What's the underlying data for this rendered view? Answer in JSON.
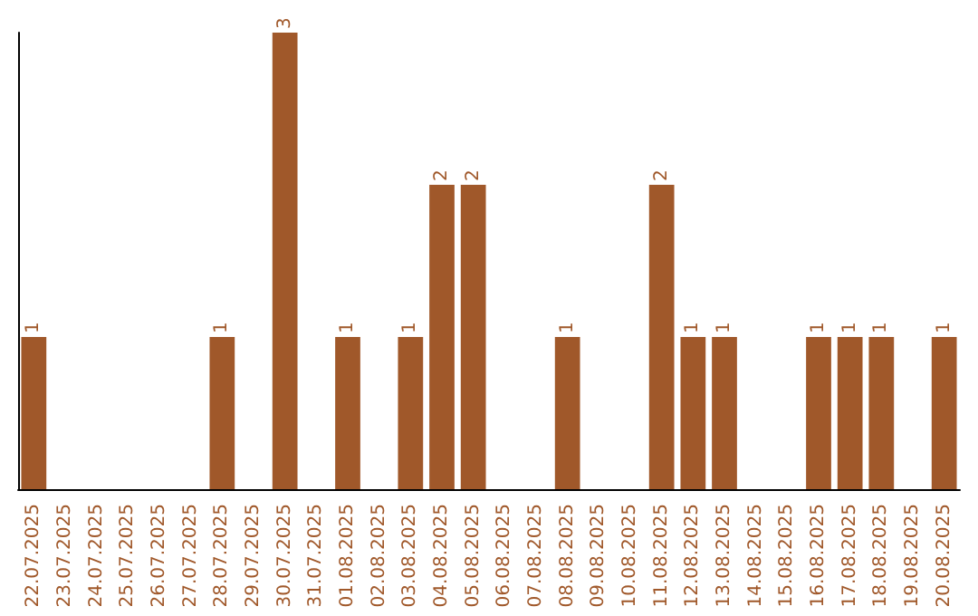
{
  "chart_data": {
    "type": "bar",
    "categories": [
      "22.07.2025",
      "23.07.2025",
      "24.07.2025",
      "25.07.2025",
      "26.07.2025",
      "27.07.2025",
      "28.07.2025",
      "29.07.2025",
      "30.07.2025",
      "31.07.2025",
      "01.08.2025",
      "02.08.2025",
      "03.08.2025",
      "04.08.2025",
      "05.08.2025",
      "06.08.2025",
      "07.08.2025",
      "08.08.2025",
      "09.08.2025",
      "10.08.2025",
      "11.08.2025",
      "12.08.2025",
      "13.08.2025",
      "14.08.2025",
      "15.08.2025",
      "16.08.2025",
      "17.08.2025",
      "18.08.2025",
      "19.08.2025",
      "20.08.2025"
    ],
    "values": [
      1,
      0,
      0,
      0,
      0,
      0,
      1,
      0,
      3,
      0,
      1,
      0,
      1,
      2,
      2,
      0,
      0,
      1,
      0,
      0,
      2,
      1,
      1,
      0,
      0,
      1,
      1,
      1,
      0,
      1
    ],
    "value_labels": [
      "1",
      null,
      null,
      null,
      null,
      null,
      "1",
      null,
      "3",
      null,
      "1",
      null,
      "1",
      "2",
      "2",
      null,
      null,
      "1",
      null,
      null,
      "2",
      "1",
      "1",
      null,
      null,
      "1",
      "1",
      "1",
      null,
      "1"
    ],
    "color": "#a0582a",
    "tick_labels": "x",
    "grid": false
  }
}
